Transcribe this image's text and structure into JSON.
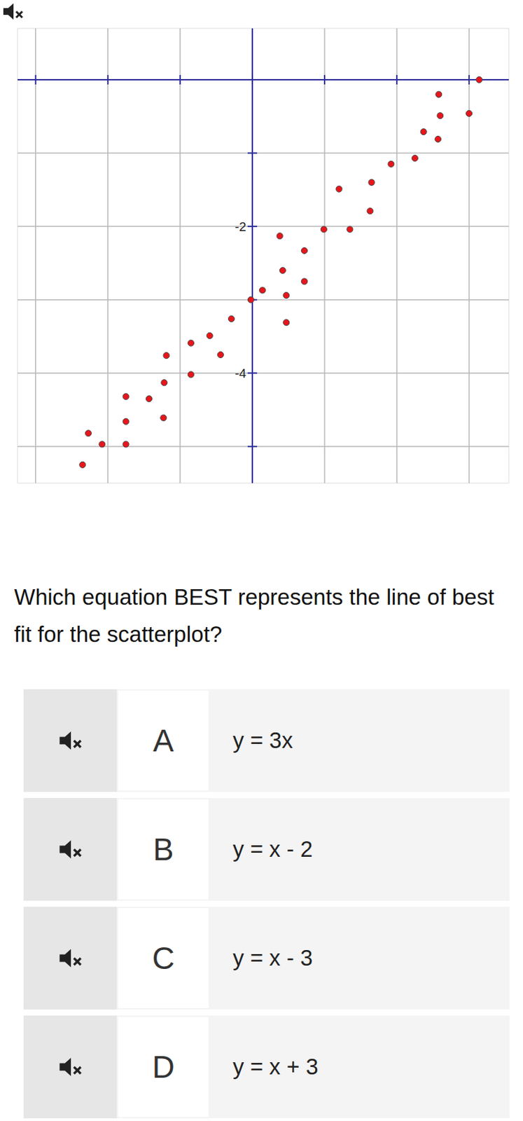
{
  "chart_data": {
    "type": "scatter",
    "x": [
      3.14,
      2.58,
      3.0,
      2.6,
      2.37,
      2.57,
      2.25,
      1.92,
      1.65,
      1.2,
      1.63,
      0.99,
      1.35,
      0.38,
      0.72,
      0.42,
      0.72,
      0.14,
      -0.02,
      0.47,
      -0.29,
      0.47,
      -0.59,
      -0.85,
      -0.44,
      -1.19,
      -0.85,
      -1.22,
      -1.75,
      -1.43,
      -1.75,
      -1.23,
      -2.27,
      -2.08,
      -1.75,
      -2.35
    ],
    "values": [
      0.0,
      -0.2,
      -0.46,
      -0.49,
      -0.71,
      -0.81,
      -1.07,
      -1.15,
      -1.4,
      -1.49,
      -1.79,
      -2.04,
      -2.04,
      -2.13,
      -2.33,
      -2.6,
      -2.75,
      -2.87,
      -3.0,
      -2.94,
      -3.26,
      -3.31,
      -3.49,
      -3.59,
      -3.75,
      -3.76,
      -4.02,
      -4.13,
      -4.32,
      -4.35,
      -4.66,
      -4.61,
      -4.82,
      -4.97,
      -4.97,
      -5.25
    ],
    "color": "#e8161b",
    "marker": "circle",
    "xlim": [
      -3.25,
      3.55
    ],
    "ylim": [
      -5.5,
      0.7
    ],
    "xticks": [
      -3,
      -2,
      -1,
      0,
      1,
      2,
      3
    ],
    "yticks": [
      {
        "value": -5,
        "label": null
      },
      -4,
      {
        "value": -3,
        "label": null
      },
      -2,
      {
        "value": -1,
        "label": null
      },
      {
        "value": 0,
        "label": null
      }
    ],
    "grid": true,
    "tick_labels": "y"
  },
  "question": "Which equation BEST represents the line of best fit for the scatterplot?",
  "choices": [
    {
      "letter": "A",
      "text": "y = 3x"
    },
    {
      "letter": "B",
      "text": "y = x - 2"
    },
    {
      "letter": "C",
      "text": "y = x - 3"
    },
    {
      "letter": "D",
      "text": "y = x + 3"
    }
  ]
}
